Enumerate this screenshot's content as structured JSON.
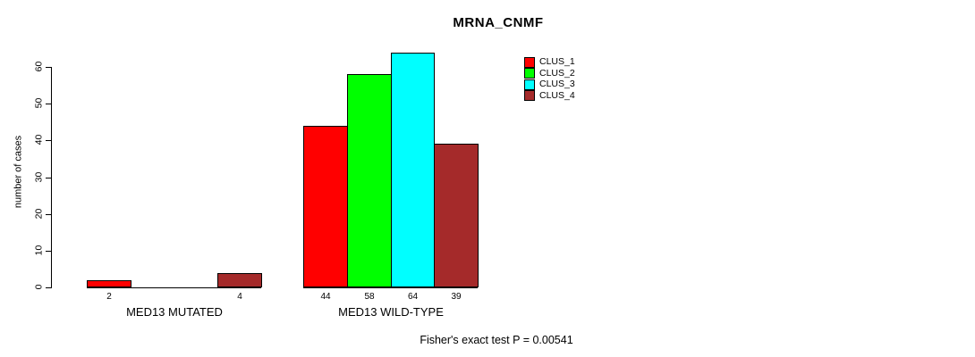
{
  "chart_data": {
    "type": "bar",
    "title": "MRNA_CNMF",
    "ylabel": "number of cases",
    "xlabel": "",
    "ylim": [
      0,
      60
    ],
    "yticks": [
      0,
      10,
      20,
      30,
      40,
      50,
      60
    ],
    "grid": false,
    "legend_position": "top-right",
    "series_names": [
      "CLUS_1",
      "CLUS_2",
      "CLUS_3",
      "CLUS_4"
    ],
    "series_colors": [
      "#FF0000",
      "#00FF00",
      "#00FFFF",
      "#A52A2A"
    ],
    "groups": [
      {
        "label": "MED13 MUTATED",
        "values": [
          2,
          0,
          0,
          4
        ],
        "bar_labels": [
          "2",
          "",
          "",
          "4"
        ]
      },
      {
        "label": "MED13 WILD-TYPE",
        "values": [
          44,
          58,
          64,
          39
        ],
        "bar_labels": [
          "44",
          "58",
          "64",
          "39"
        ]
      }
    ],
    "annotation": "Fisher's exact test P = 0.00541"
  }
}
